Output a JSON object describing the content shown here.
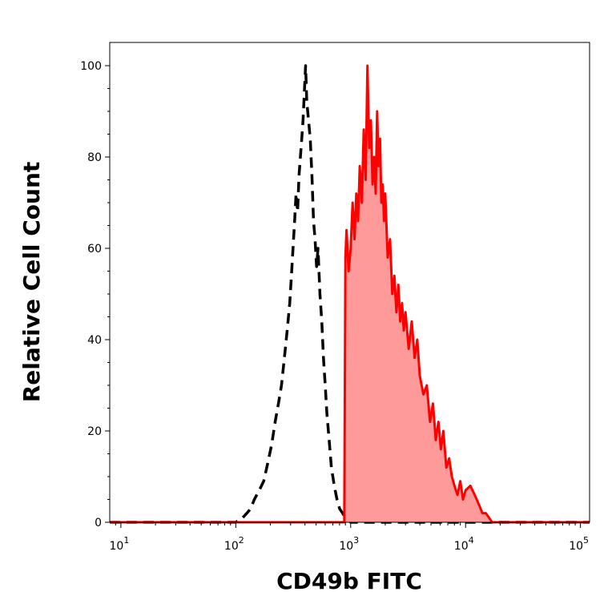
{
  "chart_data": {
    "type": "area",
    "title": "",
    "xlabel": "CD49b FITC",
    "ylabel": "Relative Cell Count",
    "xscale": "log",
    "xlim": [
      8,
      120000
    ],
    "ylim": [
      0,
      100
    ],
    "grid": false,
    "legend": "none",
    "x_ticks": [
      {
        "value": 10,
        "label": "10",
        "exp": "1"
      },
      {
        "value": 100,
        "label": "10",
        "exp": "2"
      },
      {
        "value": 1000,
        "label": "10",
        "exp": "3"
      },
      {
        "value": 10000,
        "label": "10",
        "exp": "4"
      },
      {
        "value": 100000,
        "label": "10",
        "exp": "5"
      }
    ],
    "y_ticks": [
      {
        "value": 0,
        "label": "0"
      },
      {
        "value": 20,
        "label": "20"
      },
      {
        "value": 40,
        "label": "40"
      },
      {
        "value": 60,
        "label": "60"
      },
      {
        "value": 80,
        "label": "80"
      },
      {
        "value": 100,
        "label": "100"
      }
    ],
    "series": [
      {
        "style": "dashed-outline",
        "color": "#000000",
        "x": [
          8,
          100,
          115,
          125,
          135,
          145,
          160,
          175,
          190,
          205,
          220,
          235,
          250,
          265,
          280,
          295,
          305,
          315,
          325,
          335,
          345,
          355,
          365,
          375,
          385,
          395,
          405,
          415,
          430,
          445,
          460,
          475,
          490,
          505,
          520,
          540,
          560,
          580,
          600,
          620,
          650,
          680,
          720,
          760,
          800,
          850,
          900,
          1000,
          120000
        ],
        "y": [
          0,
          0,
          1,
          2,
          3,
          5,
          7,
          9,
          13,
          17,
          22,
          26,
          30,
          36,
          42,
          48,
          54,
          60,
          66,
          72,
          68,
          76,
          80,
          84,
          88,
          94,
          100,
          92,
          88,
          84,
          76,
          66,
          62,
          56,
          60,
          50,
          44,
          36,
          30,
          24,
          18,
          12,
          8,
          5,
          3,
          2,
          1,
          0,
          0
        ]
      },
      {
        "style": "filled",
        "color": "#ff0000",
        "fill": "#ff9a9a",
        "x": [
          8,
          880,
          900,
          920,
          960,
          1000,
          1040,
          1080,
          1120,
          1160,
          1200,
          1250,
          1300,
          1350,
          1400,
          1450,
          1500,
          1550,
          1600,
          1650,
          1700,
          1750,
          1800,
          1850,
          1900,
          1950,
          2000,
          2100,
          2200,
          2300,
          2400,
          2500,
          2600,
          2700,
          2800,
          2900,
          3000,
          3200,
          3400,
          3600,
          3800,
          4000,
          4300,
          4600,
          4900,
          5200,
          5500,
          5800,
          6100,
          6400,
          6800,
          7200,
          7600,
          8000,
          8500,
          9000,
          9500,
          10000,
          11000,
          12000,
          13000,
          14000,
          15000,
          16000,
          17000,
          18000,
          19000,
          120000
        ],
        "y": [
          0,
          0,
          58,
          64,
          55,
          60,
          70,
          62,
          72,
          66,
          78,
          70,
          86,
          75,
          100,
          82,
          88,
          74,
          80,
          72,
          90,
          78,
          84,
          70,
          74,
          66,
          72,
          58,
          62,
          50,
          54,
          46,
          52,
          44,
          48,
          42,
          46,
          38,
          44,
          36,
          40,
          32,
          28,
          30,
          22,
          26,
          18,
          22,
          16,
          20,
          12,
          14,
          10,
          8,
          6,
          9,
          5,
          7,
          8,
          6,
          4,
          2,
          2,
          1,
          0,
          0,
          0,
          0
        ]
      }
    ]
  }
}
